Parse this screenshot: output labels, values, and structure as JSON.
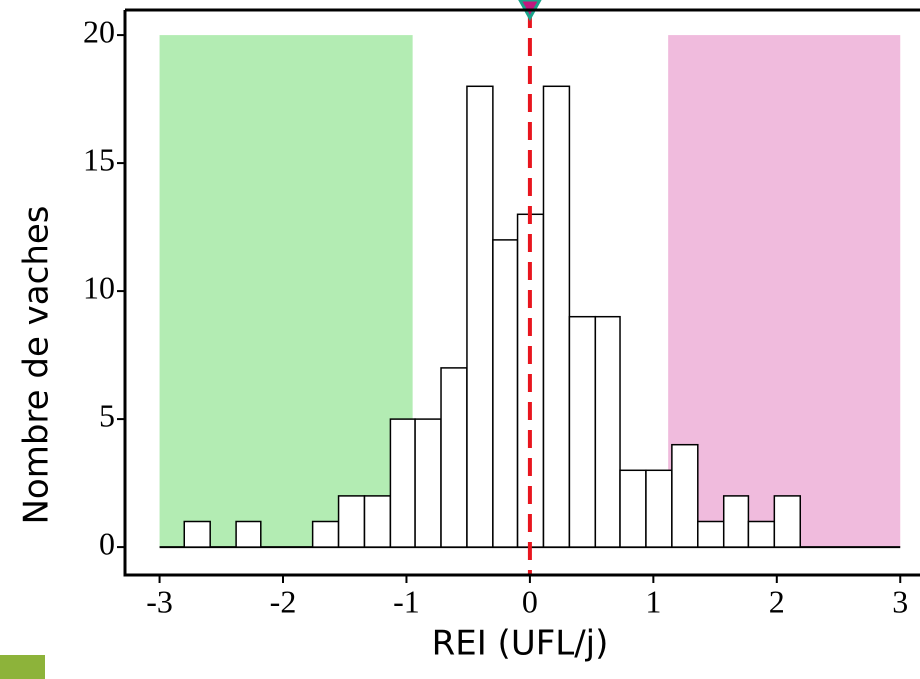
{
  "chart_data": {
    "type": "histogram",
    "x_label": "REI (UFL/j)",
    "y_label": "Nombre de vaches",
    "bins": [
      -2.8,
      -2.59,
      -2.38,
      -2.18,
      -1.97,
      -1.76,
      -1.55,
      -1.34,
      -1.13,
      -0.93,
      -0.72,
      -0.51,
      -0.3,
      -0.1,
      0.11,
      0.32,
      0.53,
      0.73,
      0.94,
      1.15,
      1.36,
      1.57,
      1.77,
      1.98,
      2.19
    ],
    "counts": [
      1,
      0,
      1,
      0,
      0,
      1,
      2,
      2,
      5,
      5,
      7,
      18,
      12,
      13,
      18,
      9,
      9,
      3,
      3,
      4,
      1,
      2,
      1,
      2
    ],
    "color": "#ffffff",
    "regions": [
      {
        "xlim": [
          -3,
          -0.95
        ],
        "top": 20,
        "color": "#b3ecb3"
      },
      {
        "xlim": [
          1.12,
          3
        ],
        "top": 20,
        "color": "#f0bbdd"
      }
    ],
    "vline": {
      "x": 0,
      "color": "#e8151e"
    },
    "xlim": [
      -3.28,
      3.16
    ],
    "ylim": [
      -1.09,
      20.98
    ],
    "xticks": [
      -3,
      -2,
      -1,
      0,
      1,
      2,
      3
    ],
    "yticks": [
      0,
      5,
      10,
      15,
      20
    ]
  }
}
